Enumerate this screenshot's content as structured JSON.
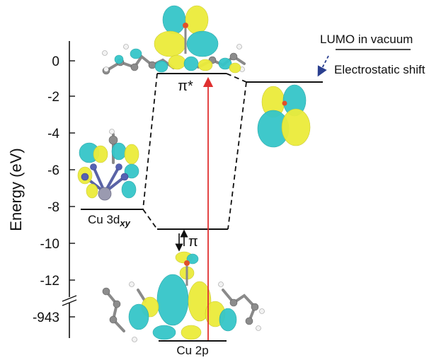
{
  "axis": {
    "label": "Energy (eV)",
    "ticks": [
      "0",
      "-2",
      "-4",
      "-6",
      "-8",
      "-10",
      "-12",
      "-943"
    ]
  },
  "levels": {
    "pi_star": "π*",
    "pi": "π",
    "cu3d_prefix": "Cu 3d",
    "cu3d_sub": "xy",
    "cu2p": "Cu 2p"
  },
  "legend": {
    "lumo": "LUMO in vacuum",
    "shift": "Electrostatic shift"
  },
  "colors": {
    "isosurface_positive": "#ecec3a",
    "isosurface_negative": "#35c6c9",
    "excitation_arrow": "#e03030",
    "shift_arrow": "#2a3f8f"
  }
}
